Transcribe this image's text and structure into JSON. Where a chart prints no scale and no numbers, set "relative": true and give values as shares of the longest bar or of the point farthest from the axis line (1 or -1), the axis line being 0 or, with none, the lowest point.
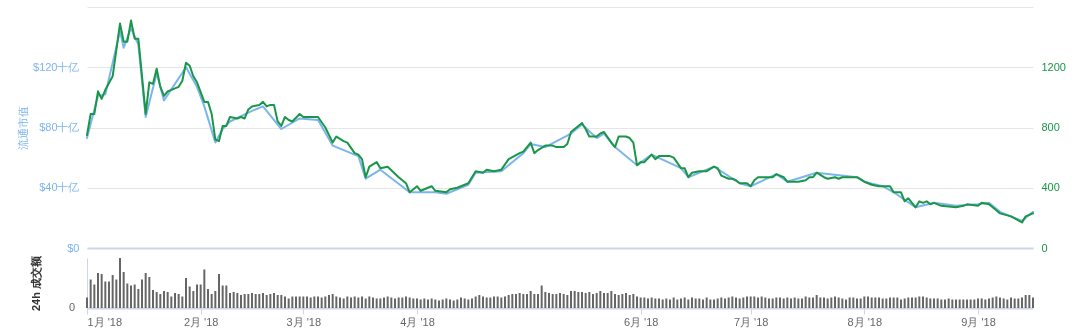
{
  "chart_data": [
    {
      "type": "line",
      "ylabel": "流通市值",
      "xlim": [
        "2018-01-01",
        "2018-09-16"
      ],
      "ylim": [
        0,
        160
      ],
      "yticks": [
        {
          "value": 0,
          "label": "$0"
        },
        {
          "value": 40,
          "label": "$40十亿"
        },
        {
          "value": 80,
          "label": "$80十亿"
        },
        {
          "value": 120,
          "label": "$120十亿"
        },
        {
          "value": 160,
          "label": null
        }
      ],
      "y2lim": [
        0,
        1600
      ],
      "y2ticks": [
        0,
        400,
        800,
        1200
      ],
      "grid": "y",
      "tick_labels": "y",
      "series": [
        {
          "color": "#7cb5ec",
          "x": [
            "2018-01-01",
            "2018-01-04",
            "2018-01-06",
            "2018-01-10",
            "2018-01-11",
            "2018-01-13",
            "2018-01-15",
            "2018-01-17",
            "2018-01-20",
            "2018-01-22",
            "2018-01-28",
            "2018-01-31",
            "2018-02-02",
            "2018-02-05",
            "2018-02-07",
            "2018-02-09",
            "2018-02-15",
            "2018-02-18",
            "2018-02-23",
            "2018-02-28",
            "2018-03-05",
            "2018-03-09",
            "2018-03-16",
            "2018-03-18",
            "2018-03-22",
            "2018-03-30",
            "2018-04-06",
            "2018-04-09",
            "2018-04-15",
            "2018-04-17",
            "2018-04-24",
            "2018-04-30",
            "2018-05-02",
            "2018-05-06",
            "2018-05-13",
            "2018-05-16",
            "2018-05-20",
            "2018-05-22",
            "2018-05-25",
            "2018-05-31",
            "2018-06-04",
            "2018-06-12",
            "2018-06-14",
            "2018-06-21",
            "2018-06-28",
            "2018-07-01",
            "2018-07-08",
            "2018-07-11",
            "2018-07-19",
            "2018-07-30",
            "2018-08-01",
            "2018-08-06",
            "2018-08-09",
            "2018-08-15",
            "2018-08-20",
            "2018-08-26",
            "2018-09-01",
            "2018-09-04",
            "2018-09-07",
            "2018-09-13",
            "2018-09-16"
          ],
          "values": [
            73,
            101,
            102,
            144,
            133,
            146,
            135,
            87,
            116,
            98,
            120,
            107,
            94,
            70,
            79,
            84,
            91,
            94,
            79,
            86,
            85,
            68,
            61,
            46,
            52,
            37,
            37,
            36,
            42,
            50,
            51,
            63,
            69,
            67,
            76,
            82,
            73,
            76,
            67,
            55,
            62,
            53,
            47,
            54,
            43,
            41,
            49,
            44,
            50,
            47,
            44,
            41,
            37,
            27,
            30,
            28,
            29,
            30,
            24,
            18,
            24
          ]
        },
        {
          "color": "#1a9648",
          "axis": "y2",
          "x": [
            "2018-01-01",
            "2018-01-02",
            "2018-01-03",
            "2018-01-04",
            "2018-01-05",
            "2018-01-06",
            "2018-01-08",
            "2018-01-10",
            "2018-01-11",
            "2018-01-12",
            "2018-01-13",
            "2018-01-14",
            "2018-01-15",
            "2018-01-17",
            "2018-01-18",
            "2018-01-19",
            "2018-01-20",
            "2018-01-21",
            "2018-01-22",
            "2018-01-23",
            "2018-01-26",
            "2018-01-27",
            "2018-01-28",
            "2018-01-29",
            "2018-01-30",
            "2018-01-31",
            "2018-02-02",
            "2018-02-03",
            "2018-02-04",
            "2018-02-05",
            "2018-02-06",
            "2018-02-07",
            "2018-02-08",
            "2018-02-09",
            "2018-02-11",
            "2018-02-12",
            "2018-02-13",
            "2018-02-14",
            "2018-02-15",
            "2018-02-17",
            "2018-02-18",
            "2018-02-19",
            "2018-02-20",
            "2018-02-21",
            "2018-02-22",
            "2018-02-23",
            "2018-02-24",
            "2018-02-25",
            "2018-02-26",
            "2018-02-28",
            "2018-03-01",
            "2018-03-05",
            "2018-03-07",
            "2018-03-09",
            "2018-03-10",
            "2018-03-12",
            "2018-03-13",
            "2018-03-15",
            "2018-03-16",
            "2018-03-17",
            "2018-03-18",
            "2018-03-19",
            "2018-03-21",
            "2018-03-22",
            "2018-03-24",
            "2018-03-27",
            "2018-03-29",
            "2018-03-30",
            "2018-04-01",
            "2018-04-02",
            "2018-04-05",
            "2018-04-06",
            "2018-04-09",
            "2018-04-10",
            "2018-04-12",
            "2018-04-15",
            "2018-04-17",
            "2018-04-19",
            "2018-04-20",
            "2018-04-22",
            "2018-04-24",
            "2018-04-26",
            "2018-04-29",
            "2018-04-30",
            "2018-05-02",
            "2018-05-03",
            "2018-05-04",
            "2018-05-06",
            "2018-05-08",
            "2018-05-09",
            "2018-05-11",
            "2018-05-12",
            "2018-05-13",
            "2018-05-16",
            "2018-05-17",
            "2018-05-18",
            "2018-05-20",
            "2018-05-21",
            "2018-05-22",
            "2018-05-24",
            "2018-05-25",
            "2018-05-26",
            "2018-05-28",
            "2018-05-29",
            "2018-05-30",
            "2018-05-31",
            "2018-06-01",
            "2018-06-02",
            "2018-06-04",
            "2018-06-05",
            "2018-06-06",
            "2018-06-07",
            "2018-06-09",
            "2018-06-10",
            "2018-06-12",
            "2018-06-13",
            "2018-06-14",
            "2018-06-15",
            "2018-06-17",
            "2018-06-19",
            "2018-06-21",
            "2018-06-22",
            "2018-06-23",
            "2018-06-25",
            "2018-06-26",
            "2018-06-27",
            "2018-06-28",
            "2018-06-30",
            "2018-07-01",
            "2018-07-02",
            "2018-07-03",
            "2018-07-07",
            "2018-07-08",
            "2018-07-10",
            "2018-07-11",
            "2018-07-14",
            "2018-07-16",
            "2018-07-17",
            "2018-07-18",
            "2018-07-19",
            "2018-07-21",
            "2018-07-22",
            "2018-07-24",
            "2018-07-25",
            "2018-07-26",
            "2018-07-27",
            "2018-07-28",
            "2018-07-30",
            "2018-08-01",
            "2018-08-03",
            "2018-08-05",
            "2018-08-06",
            "2018-08-08",
            "2018-08-09",
            "2018-08-11",
            "2018-08-12",
            "2018-08-13",
            "2018-08-14",
            "2018-08-15",
            "2018-08-16",
            "2018-08-17",
            "2018-08-18",
            "2018-08-19",
            "2018-08-20",
            "2018-08-22",
            "2018-08-26",
            "2018-08-28",
            "2018-08-29",
            "2018-09-01",
            "2018-09-02",
            "2018-09-04",
            "2018-09-06",
            "2018-09-07",
            "2018-09-10",
            "2018-09-13",
            "2018-09-14",
            "2018-09-16"
          ],
          "values": [
            750,
            890,
            890,
            1040,
            990,
            1050,
            1140,
            1490,
            1370,
            1370,
            1510,
            1390,
            1390,
            890,
            1100,
            1090,
            1190,
            1070,
            1010,
            1040,
            1070,
            1110,
            1230,
            1210,
            1140,
            1100,
            970,
            970,
            890,
            720,
            710,
            810,
            810,
            870,
            860,
            870,
            860,
            920,
            940,
            950,
            970,
            940,
            950,
            950,
            840,
            810,
            870,
            850,
            840,
            890,
            870,
            870,
            800,
            700,
            740,
            710,
            700,
            630,
            620,
            590,
            470,
            540,
            570,
            530,
            540,
            470,
            430,
            370,
            410,
            380,
            410,
            380,
            370,
            390,
            400,
            430,
            510,
            500,
            520,
            510,
            520,
            590,
            630,
            640,
            700,
            630,
            650,
            680,
            680,
            670,
            670,
            690,
            770,
            830,
            790,
            740,
            740,
            760,
            770,
            700,
            670,
            740,
            740,
            730,
            700,
            550,
            570,
            570,
            620,
            590,
            610,
            610,
            610,
            600,
            530,
            530,
            470,
            500,
            510,
            510,
            540,
            530,
            480,
            460,
            460,
            450,
            430,
            430,
            410,
            450,
            470,
            470,
            490,
            470,
            440,
            440,
            450,
            470,
            470,
            500,
            470,
            460,
            470,
            460,
            470,
            470,
            470,
            470,
            440,
            420,
            410,
            410,
            410,
            370,
            370,
            310,
            330,
            300,
            270,
            310,
            300,
            310,
            290,
            300,
            280,
            270,
            280,
            290,
            280,
            300,
            290,
            250,
            230,
            210,
            170,
            210,
            230
          ]
        }
      ]
    },
    {
      "type": "bar",
      "ylabel": "24h 成交额",
      "relative": true,
      "color": "#666666",
      "annotations": [
        "0"
      ],
      "xlim": [
        "2018-01-01",
        "2018-09-16"
      ],
      "xticks": [
        {
          "value": "2018-01-01",
          "label": "1月 '18"
        },
        {
          "value": "2018-02-01",
          "label": "2月 '18"
        },
        {
          "value": "2018-03-01",
          "label": "3月 '18"
        },
        {
          "value": "2018-04-01",
          "label": "4月 '18"
        },
        {
          "value": "2018-06-01",
          "label": "6月 '18"
        },
        {
          "value": "2018-07-01",
          "label": "7月 '18"
        },
        {
          "value": "2018-08-01",
          "label": "8月 '18"
        },
        {
          "value": "2018-09-01",
          "label": "9月 '18"
        }
      ],
      "tick_labels": "x",
      "x": [
        "2018-01-01",
        "2018-01-02",
        "2018-01-03",
        "2018-01-04",
        "2018-01-05",
        "2018-01-06",
        "2018-01-07",
        "2018-01-08",
        "2018-01-09",
        "2018-01-10",
        "2018-01-11",
        "2018-01-12",
        "2018-01-13",
        "2018-01-14",
        "2018-01-15",
        "2018-01-16",
        "2018-01-17",
        "2018-01-18",
        "2018-01-19",
        "2018-01-20",
        "2018-01-21",
        "2018-01-22",
        "2018-01-23",
        "2018-01-24",
        "2018-01-25",
        "2018-01-26",
        "2018-01-27",
        "2018-01-28",
        "2018-01-29",
        "2018-01-30",
        "2018-01-31",
        "2018-02-01",
        "2018-02-02",
        "2018-02-03",
        "2018-02-04",
        "2018-02-05",
        "2018-02-06",
        "2018-02-07",
        "2018-02-08",
        "2018-02-09",
        "2018-02-10",
        "2018-02-11",
        "2018-02-12",
        "2018-02-13",
        "2018-02-14",
        "2018-02-15",
        "2018-02-16",
        "2018-02-17",
        "2018-02-18",
        "2018-02-19",
        "2018-02-20",
        "2018-02-21",
        "2018-02-22",
        "2018-02-23",
        "2018-02-24",
        "2018-02-25",
        "2018-02-26",
        "2018-02-27",
        "2018-02-28",
        "2018-03-01",
        "2018-03-02",
        "2018-03-03",
        "2018-03-04",
        "2018-03-05",
        "2018-03-06",
        "2018-03-07",
        "2018-03-08",
        "2018-03-09",
        "2018-03-10",
        "2018-03-11",
        "2018-03-12",
        "2018-03-13",
        "2018-03-14",
        "2018-03-15",
        "2018-03-16",
        "2018-03-17",
        "2018-03-18",
        "2018-03-19",
        "2018-03-20",
        "2018-03-21",
        "2018-03-22",
        "2018-03-23",
        "2018-03-24",
        "2018-03-25",
        "2018-03-26",
        "2018-03-27",
        "2018-03-28",
        "2018-03-29",
        "2018-03-30",
        "2018-03-31",
        "2018-04-01",
        "2018-04-02",
        "2018-04-03",
        "2018-04-04",
        "2018-04-05",
        "2018-04-06",
        "2018-04-07",
        "2018-04-08",
        "2018-04-09",
        "2018-04-10",
        "2018-04-11",
        "2018-04-12",
        "2018-04-13",
        "2018-04-14",
        "2018-04-15",
        "2018-04-16",
        "2018-04-17",
        "2018-04-18",
        "2018-04-19",
        "2018-04-20",
        "2018-04-21",
        "2018-04-22",
        "2018-04-23",
        "2018-04-24",
        "2018-04-25",
        "2018-04-26",
        "2018-04-27",
        "2018-04-28",
        "2018-04-29",
        "2018-04-30",
        "2018-05-01",
        "2018-05-02",
        "2018-05-03",
        "2018-05-04",
        "2018-05-05",
        "2018-05-06",
        "2018-05-07",
        "2018-05-08",
        "2018-05-09",
        "2018-05-10",
        "2018-05-11",
        "2018-05-12",
        "2018-05-13",
        "2018-05-14",
        "2018-05-15",
        "2018-05-16",
        "2018-05-17",
        "2018-05-18",
        "2018-05-19",
        "2018-05-20",
        "2018-05-21",
        "2018-05-22",
        "2018-05-23",
        "2018-05-24",
        "2018-05-25",
        "2018-05-26",
        "2018-05-27",
        "2018-05-28",
        "2018-05-29",
        "2018-05-30",
        "2018-05-31",
        "2018-06-01",
        "2018-06-02",
        "2018-06-03",
        "2018-06-04",
        "2018-06-05",
        "2018-06-06",
        "2018-06-07",
        "2018-06-08",
        "2018-06-09",
        "2018-06-10",
        "2018-06-11",
        "2018-06-12",
        "2018-06-13",
        "2018-06-14",
        "2018-06-15",
        "2018-06-16",
        "2018-06-17",
        "2018-06-18",
        "2018-06-19",
        "2018-06-20",
        "2018-06-21",
        "2018-06-22",
        "2018-06-23",
        "2018-06-24",
        "2018-06-25",
        "2018-06-26",
        "2018-06-27",
        "2018-06-28",
        "2018-06-29",
        "2018-06-30",
        "2018-07-01",
        "2018-07-02",
        "2018-07-03",
        "2018-07-04",
        "2018-07-05",
        "2018-07-06",
        "2018-07-07",
        "2018-07-08",
        "2018-07-09",
        "2018-07-10",
        "2018-07-11",
        "2018-07-12",
        "2018-07-13",
        "2018-07-14",
        "2018-07-15",
        "2018-07-16",
        "2018-07-17",
        "2018-07-18",
        "2018-07-19",
        "2018-07-20",
        "2018-07-21",
        "2018-07-22",
        "2018-07-23",
        "2018-07-24",
        "2018-07-25",
        "2018-07-26",
        "2018-07-27",
        "2018-07-28",
        "2018-07-29",
        "2018-07-30",
        "2018-07-31",
        "2018-08-01",
        "2018-08-02",
        "2018-08-03",
        "2018-08-04",
        "2018-08-05",
        "2018-08-06",
        "2018-08-07",
        "2018-08-08",
        "2018-08-09",
        "2018-08-10",
        "2018-08-11",
        "2018-08-12",
        "2018-08-13",
        "2018-08-14",
        "2018-08-15",
        "2018-08-16",
        "2018-08-17",
        "2018-08-18",
        "2018-08-19",
        "2018-08-20",
        "2018-08-21",
        "2018-08-22",
        "2018-08-23",
        "2018-08-24",
        "2018-08-25",
        "2018-08-26",
        "2018-08-27",
        "2018-08-28",
        "2018-08-29",
        "2018-08-30",
        "2018-08-31",
        "2018-09-01",
        "2018-09-02",
        "2018-09-03",
        "2018-09-04",
        "2018-09-05",
        "2018-09-06",
        "2018-09-07",
        "2018-09-08",
        "2018-09-09",
        "2018-09-10",
        "2018-09-11",
        "2018-09-12",
        "2018-09-13",
        "2018-09-14",
        "2018-09-15",
        "2018-09-16"
      ],
      "values": [
        0.21,
        0.57,
        0.47,
        0.7,
        0.68,
        0.53,
        0.53,
        0.66,
        0.57,
        1,
        0.72,
        0.49,
        0.45,
        0.47,
        0.38,
        0.57,
        0.7,
        0.62,
        0.36,
        0.32,
        0.28,
        0.34,
        0.32,
        0.23,
        0.3,
        0.28,
        0.23,
        0.6,
        0.43,
        0.34,
        0.47,
        0.47,
        0.77,
        0.38,
        0.28,
        0.34,
        0.68,
        0.45,
        0.45,
        0.3,
        0.32,
        0.3,
        0.26,
        0.28,
        0.28,
        0.3,
        0.28,
        0.28,
        0.3,
        0.26,
        0.28,
        0.3,
        0.26,
        0.26,
        0.23,
        0.19,
        0.23,
        0.23,
        0.23,
        0.23,
        0.23,
        0.21,
        0.23,
        0.23,
        0.21,
        0.23,
        0.26,
        0.28,
        0.23,
        0.21,
        0.19,
        0.23,
        0.21,
        0.23,
        0.21,
        0.23,
        0.19,
        0.23,
        0.21,
        0.19,
        0.19,
        0.21,
        0.23,
        0.21,
        0.19,
        0.21,
        0.21,
        0.23,
        0.21,
        0.19,
        0.19,
        0.17,
        0.19,
        0.17,
        0.19,
        0.17,
        0.15,
        0.17,
        0.19,
        0.17,
        0.15,
        0.17,
        0.21,
        0.19,
        0.17,
        0.19,
        0.23,
        0.26,
        0.23,
        0.21,
        0.21,
        0.23,
        0.23,
        0.21,
        0.23,
        0.26,
        0.28,
        0.28,
        0.3,
        0.28,
        0.28,
        0.34,
        0.28,
        0.28,
        0.45,
        0.32,
        0.3,
        0.28,
        0.28,
        0.3,
        0.28,
        0.26,
        0.34,
        0.34,
        0.32,
        0.32,
        0.3,
        0.32,
        0.28,
        0.3,
        0.34,
        0.3,
        0.3,
        0.34,
        0.28,
        0.26,
        0.28,
        0.3,
        0.26,
        0.28,
        0.23,
        0.21,
        0.21,
        0.19,
        0.21,
        0.19,
        0.19,
        0.17,
        0.19,
        0.17,
        0.21,
        0.17,
        0.19,
        0.21,
        0.17,
        0.21,
        0.19,
        0.19,
        0.17,
        0.21,
        0.17,
        0.17,
        0.19,
        0.21,
        0.19,
        0.21,
        0.23,
        0.21,
        0.19,
        0.21,
        0.23,
        0.23,
        0.23,
        0.21,
        0.23,
        0.21,
        0.19,
        0.19,
        0.21,
        0.21,
        0.19,
        0.21,
        0.19,
        0.21,
        0.19,
        0.19,
        0.23,
        0.21,
        0.21,
        0.26,
        0.21,
        0.21,
        0.19,
        0.21,
        0.23,
        0.21,
        0.19,
        0.17,
        0.21,
        0.21,
        0.19,
        0.19,
        0.23,
        0.23,
        0.21,
        0.21,
        0.21,
        0.19,
        0.19,
        0.21,
        0.21,
        0.21,
        0.17,
        0.19,
        0.21,
        0.21,
        0.21,
        0.23,
        0.23,
        0.21,
        0.19,
        0.19,
        0.19,
        0.17,
        0.17,
        0.19,
        0.17,
        0.17,
        0.17,
        0.17,
        0.17,
        0.17,
        0.17,
        0.19,
        0.19,
        0.17,
        0.19,
        0.21,
        0.23,
        0.21,
        0.19,
        0.17,
        0.21,
        0.19,
        0.19,
        0.21,
        0.26,
        0.26,
        0.21
      ]
    }
  ]
}
